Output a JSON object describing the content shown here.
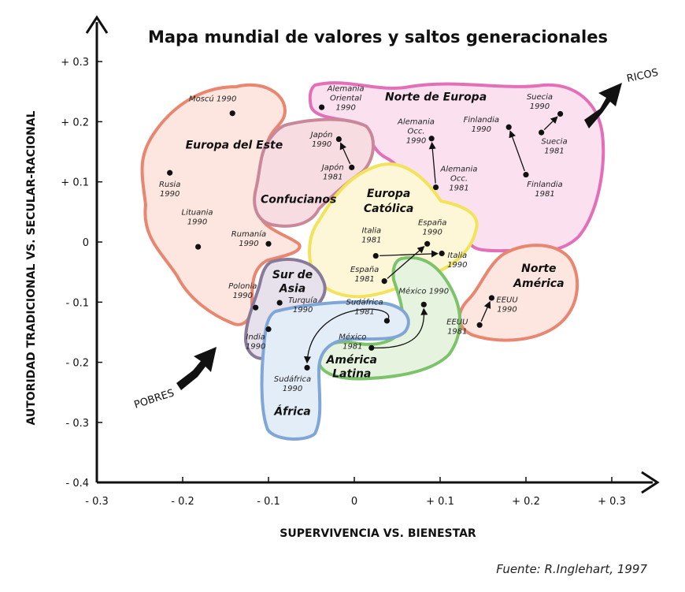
{
  "chart_data": {
    "type": "scatter",
    "title": "Mapa mundial de valores y saltos generacionales",
    "xlabel": "SUPERVIVENCIA VS. BIENESTAR",
    "ylabel": "AUTORIDAD TRADICIONAL VS. SECULAR-RACIONAL",
    "xlim": [
      -0.3,
      0.3
    ],
    "ylim": [
      -0.4,
      0.3
    ],
    "x_ticks": [
      "- 0.3",
      "- 0.2",
      "- 0.1",
      "0",
      "+ 0.1",
      "+ 0.2",
      "+ 0.3"
    ],
    "y_ticks": [
      "+ 0.3",
      "+ 0.2",
      "+ 0.1",
      "0",
      "- 0.1",
      "- 0.2",
      "- 0.3",
      "- 0.4"
    ],
    "regions": [
      {
        "name": "Europa del Este",
        "x": -0.14,
        "y": 0.155,
        "color": "#e8866f"
      },
      {
        "name": "Norte de Europa",
        "x": 0.095,
        "y": 0.235,
        "color": "#e26fb7"
      },
      {
        "name": "Confucianos",
        "x": -0.065,
        "y": 0.065,
        "color": "#c9889a"
      },
      {
        "name": "Europa",
        "x": 0.04,
        "y": 0.075,
        "color": "#f2e35a"
      },
      {
        "name": "Católica",
        "x": 0.04,
        "y": 0.05,
        "color": "#f2e35a"
      },
      {
        "name": "Norte",
        "x": 0.215,
        "y": -0.05,
        "color": "#e8866f"
      },
      {
        "name": "América",
        "x": 0.215,
        "y": -0.075,
        "color": "#e8866f"
      },
      {
        "name": "Sur de",
        "x": -0.072,
        "y": -0.06,
        "color": "#8a7a9a"
      },
      {
        "name": "Asia",
        "x": -0.072,
        "y": -0.083,
        "color": "#8a7a9a"
      },
      {
        "name": "América",
        "x": -0.003,
        "y": -0.202,
        "color": "#7cc36b"
      },
      {
        "name": "Latina",
        "x": -0.003,
        "y": -0.225,
        "color": "#7cc36b"
      },
      {
        "name": "África",
        "x": -0.072,
        "y": -0.288,
        "color": "#7fa6d6"
      }
    ],
    "points": [
      {
        "label": [
          "Moscú 1990"
        ],
        "x": -0.142,
        "y": 0.214,
        "lx": -0.165,
        "ly": 0.234,
        "anchor": "middle"
      },
      {
        "label": [
          "Rusia",
          "1990"
        ],
        "x": -0.215,
        "y": 0.115,
        "lx": -0.215,
        "ly": 0.092,
        "anchor": "middle"
      },
      {
        "label": [
          "Lituania",
          "1990"
        ],
        "x": -0.182,
        "y": -0.008,
        "lx": -0.183,
        "ly": 0.045,
        "anchor": "middle"
      },
      {
        "label": [
          "Rumanía",
          "1990"
        ],
        "x": -0.1,
        "y": -0.003,
        "lx": -0.123,
        "ly": 0.009,
        "anchor": "middle"
      },
      {
        "label": [
          "Polonia",
          "1990"
        ],
        "x": -0.115,
        "y": -0.109,
        "lx": -0.13,
        "ly": -0.077,
        "anchor": "middle"
      },
      {
        "label": [
          "India",
          "1990"
        ],
        "x": -0.1,
        "y": -0.145,
        "lx": -0.115,
        "ly": -0.162,
        "anchor": "middle"
      },
      {
        "label": [
          "Turquía",
          "1990"
        ],
        "x": -0.087,
        "y": -0.101,
        "lx": -0.06,
        "ly": -0.101,
        "anchor": "middle"
      },
      {
        "label": [
          "Alemania",
          "Oriental",
          "1990"
        ],
        "x": -0.038,
        "y": 0.224,
        "lx": -0.01,
        "ly": 0.251,
        "anchor": "middle"
      },
      {
        "label": [
          "Japón",
          "1990"
        ],
        "x": -0.018,
        "y": 0.171,
        "lx": -0.038,
        "ly": 0.174,
        "anchor": "middle"
      },
      {
        "label": [
          "Japón",
          "1981"
        ],
        "x": -0.003,
        "y": 0.124,
        "lx": -0.025,
        "ly": 0.12,
        "anchor": "middle"
      },
      {
        "label": [
          "Alemania",
          "Occ.",
          "1990"
        ],
        "x": 0.09,
        "y": 0.172,
        "lx": 0.072,
        "ly": 0.196,
        "anchor": "middle"
      },
      {
        "label": [
          "Alemania",
          "Occ.",
          "1981"
        ],
        "x": 0.095,
        "y": 0.091,
        "lx": 0.122,
        "ly": 0.117,
        "anchor": "middle"
      },
      {
        "label": [
          "Finlandia",
          "1990"
        ],
        "x": 0.18,
        "y": 0.191,
        "lx": 0.148,
        "ly": 0.199,
        "anchor": "middle"
      },
      {
        "label": [
          "Finlandia",
          "1981"
        ],
        "x": 0.2,
        "y": 0.112,
        "lx": 0.222,
        "ly": 0.092,
        "anchor": "middle"
      },
      {
        "label": [
          "Suecia",
          "1990"
        ],
        "x": 0.24,
        "y": 0.213,
        "lx": 0.216,
        "ly": 0.237,
        "anchor": "middle"
      },
      {
        "label": [
          "Suecia",
          "1981"
        ],
        "x": 0.218,
        "y": 0.182,
        "lx": 0.233,
        "ly": 0.163,
        "anchor": "middle"
      },
      {
        "label": [
          "Italia",
          "1981"
        ],
        "x": 0.025,
        "y": -0.023,
        "lx": 0.02,
        "ly": 0.015,
        "anchor": "middle"
      },
      {
        "label": [
          "Italia",
          "1990"
        ],
        "x": 0.102,
        "y": -0.019,
        "lx": 0.12,
        "ly": -0.026,
        "anchor": "middle"
      },
      {
        "label": [
          "España",
          "1990"
        ],
        "x": 0.085,
        "y": -0.003,
        "lx": 0.091,
        "ly": 0.028,
        "anchor": "middle"
      },
      {
        "label": [
          "España",
          "1981"
        ],
        "x": 0.035,
        "y": -0.065,
        "lx": 0.012,
        "ly": -0.05,
        "anchor": "middle"
      },
      {
        "label": [
          "México 1990"
        ],
        "x": 0.081,
        "y": -0.104,
        "lx": 0.081,
        "ly": -0.086,
        "anchor": "middle"
      },
      {
        "label": [
          "México",
          "1981"
        ],
        "x": 0.02,
        "y": -0.176,
        "lx": -0.002,
        "ly": -0.162,
        "anchor": "middle"
      },
      {
        "label": [
          "Sudáfrica",
          "1981"
        ],
        "x": 0.038,
        "y": -0.131,
        "lx": 0.012,
        "ly": -0.104,
        "anchor": "middle"
      },
      {
        "label": [
          "Sudáfrica",
          "1990"
        ],
        "x": -0.055,
        "y": -0.209,
        "lx": -0.072,
        "ly": -0.232,
        "anchor": "middle"
      },
      {
        "label": [
          "EEUU",
          "1990"
        ],
        "x": 0.16,
        "y": -0.093,
        "lx": 0.178,
        "ly": -0.1,
        "anchor": "middle"
      },
      {
        "label": [
          "EEUU",
          "1981"
        ],
        "x": 0.146,
        "y": -0.138,
        "lx": 0.12,
        "ly": -0.137,
        "anchor": "middle"
      }
    ],
    "arrows": [
      {
        "from": [
          -0.003,
          0.124
        ],
        "to": [
          -0.018,
          0.171
        ]
      },
      {
        "from": [
          0.095,
          0.091
        ],
        "to": [
          0.09,
          0.172
        ]
      },
      {
        "from": [
          0.2,
          0.112
        ],
        "to": [
          0.18,
          0.191
        ]
      },
      {
        "from": [
          0.218,
          0.182
        ],
        "to": [
          0.24,
          0.213
        ]
      },
      {
        "from": [
          0.025,
          -0.023
        ],
        "to": [
          0.102,
          -0.019
        ]
      },
      {
        "from": [
          0.035,
          -0.065
        ],
        "to": [
          0.085,
          -0.003
        ]
      },
      {
        "from": [
          0.146,
          -0.138
        ],
        "to": [
          0.16,
          -0.093
        ]
      },
      {
        "from": [
          0.02,
          -0.176
        ],
        "to": [
          0.081,
          -0.104
        ],
        "curve": true
      },
      {
        "from": [
          0.038,
          -0.131
        ],
        "to": [
          -0.055,
          -0.209
        ],
        "curve": true
      }
    ],
    "side_labels": {
      "rich": "RICOS",
      "poor": "POBRES"
    },
    "source": "Fuente: R.Inglehart, 1997"
  }
}
